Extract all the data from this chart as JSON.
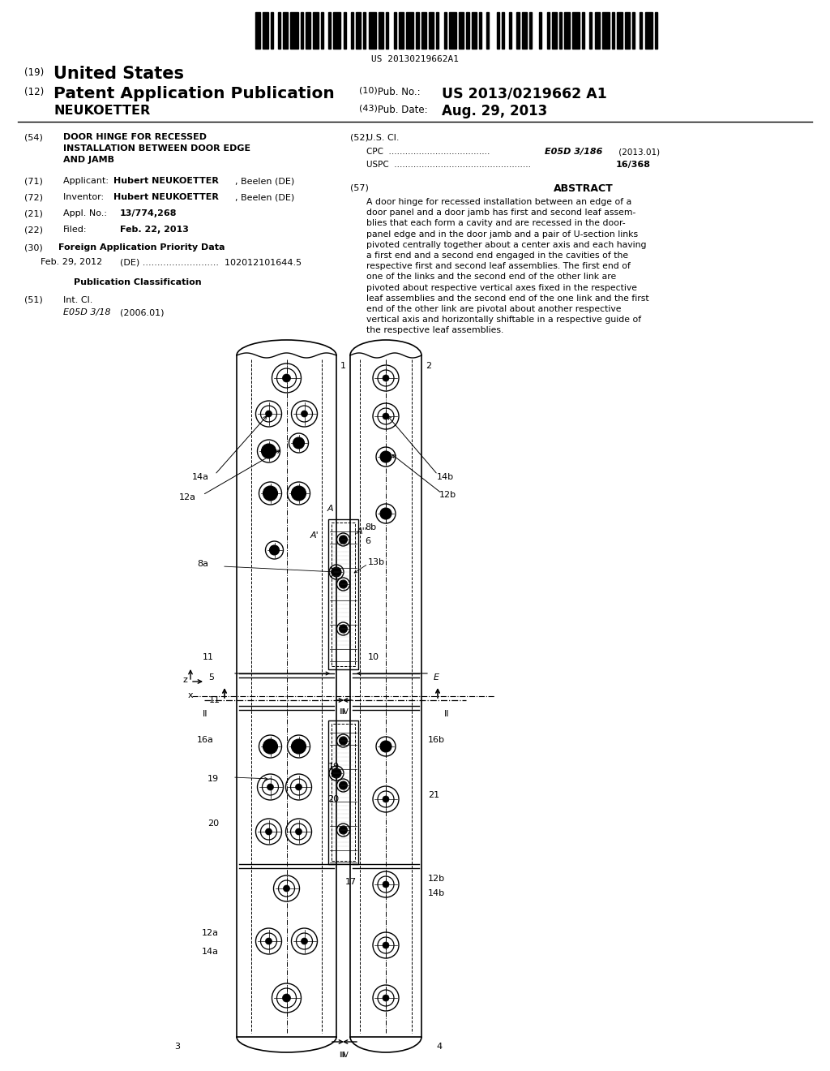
{
  "title": "DOOR HINGE FOR RECESSED INSTALLATION BETWEEN DOOR EDGE AND JAMB",
  "patent_num": "US 2013/0219662 A1",
  "pub_date": "Aug. 29, 2013",
  "barcode_text": "US 20130219662A1",
  "country": "United States",
  "kind": "Patent Application Publication",
  "applicant": "Hubert NEUKOETTER, Beelen (DE)",
  "inventor": "Hubert NEUKOETTER, Beelen (DE)",
  "appl_no": "13/774,268",
  "filed": "Feb. 22, 2013",
  "int_cl": "E05D 3/18",
  "int_cl_date": "(2006.01)",
  "us_cl_cpc": "E05D 3/186",
  "us_cl_cpc_date": "(2013.01)",
  "us_cl_uspc": "16/368",
  "foreign_priority_date": "Feb. 29, 2012",
  "foreign_priority_country": "(DE)",
  "foreign_priority_num": "102012101644.5",
  "abstract_lines": [
    "A door hinge for recessed installation between an edge of a",
    "door panel and a door jamb has first and second leaf assem-",
    "blies that each form a cavity and are recessed in the door-",
    "panel edge and in the door jamb and a pair of U-section links",
    "pivoted centrally together about a center axis and each having",
    "a first end and a second end engaged in the cavities of the",
    "respective first and second leaf assemblies. The first end of",
    "one of the links and the second end of the other link are",
    "pivoted about respective vertical axes fixed in the respective",
    "leaf assemblies and the second end of the one link and the first",
    "end of the other link are pivotal about another respective",
    "vertical axis and horizontally shiftable in a respective guide of",
    "the respective leaf assemblies."
  ],
  "bg_color": "#ffffff",
  "text_color": "#000000"
}
